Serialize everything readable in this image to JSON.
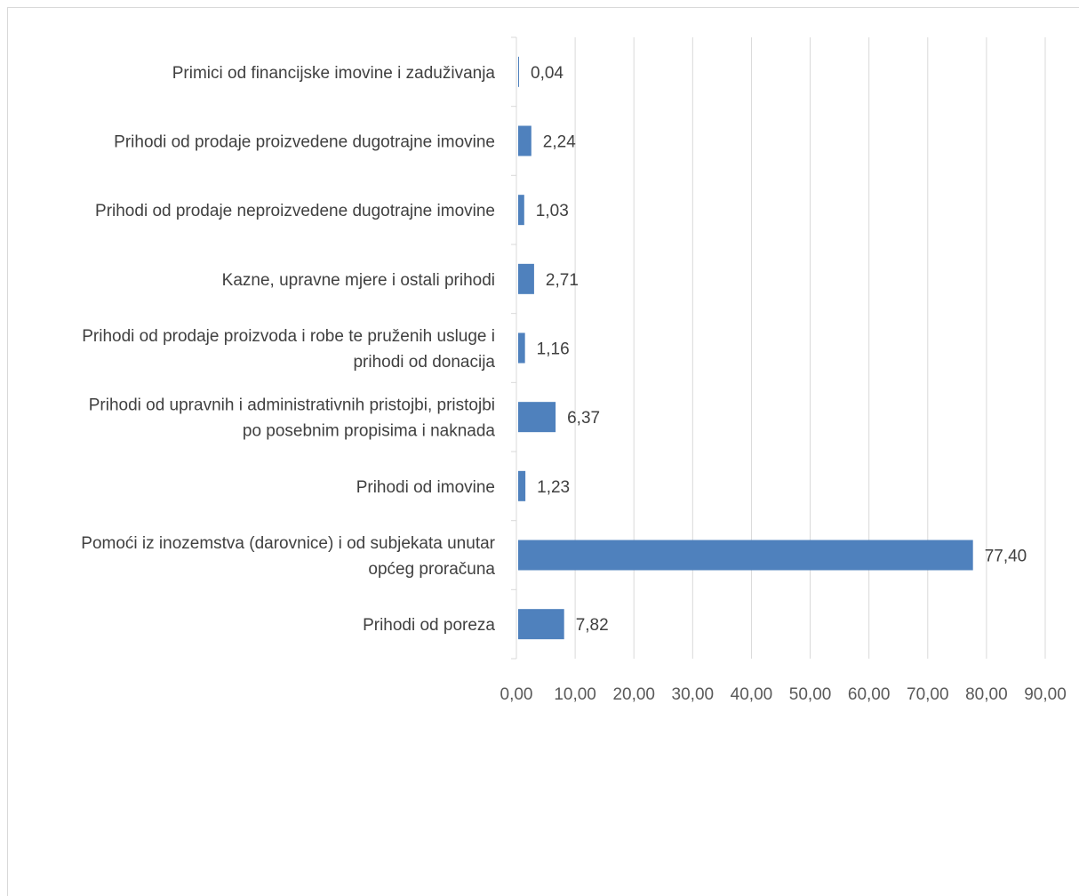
{
  "chart_data": {
    "type": "bar",
    "orientation": "horizontal",
    "categories": [
      "Prihodi od poreza",
      "Pomoći iz inozemstva (darovnice) i od subjekata unutar općeg proračuna",
      "Prihodi od imovine",
      "Prihodi od upravnih i administrativnih pristojbi, pristojbi po posebnim propisima i naknada",
      "Prihodi od prodaje proizvoda i robe te pruženih usluge i prihodi od donacija",
      "Kazne, upravne mjere i ostali prihodi",
      "Prihodi od prodaje neproizvedene dugotrajne imovine",
      "Prihodi od prodaje proizvedene dugotrajne imovine",
      "Primici od financijske imovine i zaduživanja"
    ],
    "category_lines": [
      [
        "Prihodi od poreza"
      ],
      [
        "Pomoći iz inozemstva (darovnice) i od subjekata unutar",
        "općeg proračuna"
      ],
      [
        "Prihodi od imovine"
      ],
      [
        "Prihodi od upravnih i administrativnih pristojbi, pristojbi",
        "po posebnim propisima i naknada"
      ],
      [
        "Prihodi od prodaje proizvoda i robe te pruženih usluge i",
        "prihodi od donacija"
      ],
      [
        "Kazne, upravne mjere i ostali prihodi"
      ],
      [
        "Prihodi od prodaje neproizvedene dugotrajne imovine"
      ],
      [
        "Prihodi od prodaje proizvedene dugotrajne imovine"
      ],
      [
        "Primici od financijske imovine i zaduživanja"
      ]
    ],
    "values": [
      7.82,
      77.4,
      1.23,
      6.37,
      1.16,
      2.71,
      1.03,
      2.24,
      0.04
    ],
    "value_labels": [
      "7,82",
      "77,40",
      "1,23",
      "6,37",
      "1,16",
      "2,71",
      "1,03",
      "2,24",
      "0,04"
    ],
    "xlim": [
      0,
      90
    ],
    "xticks": [
      0,
      10,
      20,
      30,
      40,
      50,
      60,
      70,
      80,
      90
    ],
    "xtick_labels": [
      "0,00",
      "10,00",
      "20,00",
      "30,00",
      "40,00",
      "50,00",
      "60,00",
      "70,00",
      "80,00",
      "90,00"
    ],
    "grid": true,
    "bar_color": "#4f81bd",
    "grid_color": "#d9d9d9",
    "text_color": "#404040"
  }
}
